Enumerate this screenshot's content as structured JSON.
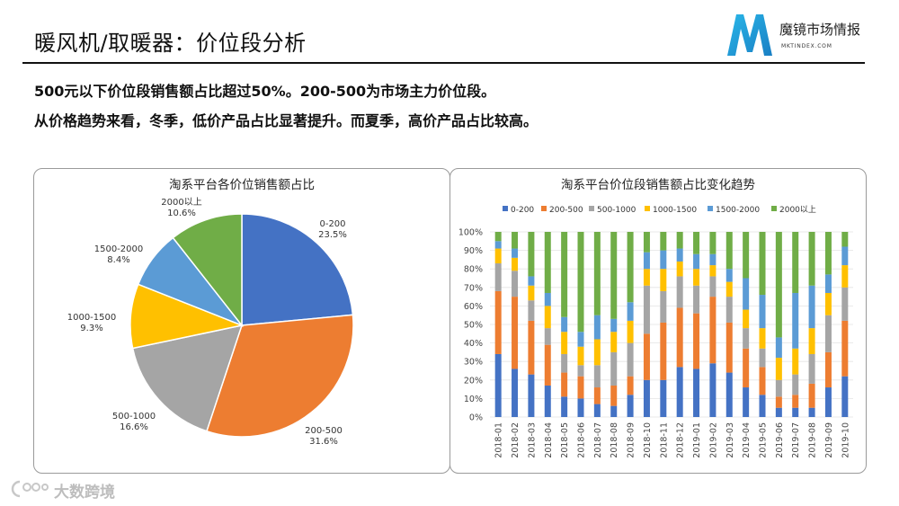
{
  "page": {
    "title": "暖风机/取暖器：价位段分析",
    "summary_line1": "500元以下价位段销售额占比超过50%。200-500为市场主力价位段。",
    "summary_line2": "从价格趋势来看，冬季，低价产品占比显著提升。而夏季，高价产品占比较高。"
  },
  "brand": {
    "name": "魔镜市场情报",
    "url": "MKTINDEX.COM"
  },
  "watermark": {
    "text": "大数跨境"
  },
  "colors": {
    "0-200": "#4472c4",
    "200-500": "#ed7d31",
    "500-1000": "#a5a5a5",
    "1000-1500": "#ffc000",
    "1500-2000": "#5b9bd5",
    "2000以上": "#70ad47"
  },
  "chart_data": [
    {
      "type": "pie",
      "title": "淘系平台各价位销售额占比",
      "slices": [
        {
          "label": "0-200",
          "value": 23.5,
          "display": "23.5%"
        },
        {
          "label": "200-500",
          "value": 31.6,
          "display": "31.6%"
        },
        {
          "label": "500-1000",
          "value": 16.6,
          "display": "16.6%"
        },
        {
          "label": "1000-1500",
          "value": 9.3,
          "display": "9.3%"
        },
        {
          "label": "1500-2000",
          "value": 8.4,
          "display": "8.4%"
        },
        {
          "label": "2000以上",
          "value": 10.6,
          "display": "10.6%"
        }
      ]
    },
    {
      "type": "bar",
      "stacked": true,
      "title": "淘系平台价位段销售额占比变化趋势",
      "legend_position": "top",
      "ylim": [
        0,
        100
      ],
      "yticks": [
        "0%",
        "10%",
        "20%",
        "30%",
        "40%",
        "50%",
        "60%",
        "70%",
        "80%",
        "90%",
        "100%"
      ],
      "categories": [
        "2018-01",
        "2018-02",
        "2018-03",
        "2018-04",
        "2018-05",
        "2018-06",
        "2018-07",
        "2018-08",
        "2018-09",
        "2018-10",
        "2018-11",
        "2018-12",
        "2019-01",
        "2019-02",
        "2019-03",
        "2019-04",
        "2019-05",
        "2019-06",
        "2019-07",
        "2019-08",
        "2019-09",
        "2019-10"
      ],
      "series": [
        {
          "name": "0-200",
          "values": [
            34,
            26,
            23,
            17,
            11,
            10,
            7,
            6,
            12,
            20,
            20,
            27,
            26,
            29,
            24,
            16,
            12,
            5,
            5,
            5,
            16,
            22
          ]
        },
        {
          "name": "200-500",
          "values": [
            34,
            39,
            29,
            22,
            13,
            12,
            9,
            11,
            10,
            25,
            31,
            32,
            30,
            36,
            27,
            21,
            15,
            6,
            7,
            13,
            19,
            30
          ]
        },
        {
          "name": "500-1000",
          "values": [
            15,
            14,
            11,
            9,
            10,
            6,
            12,
            18,
            18,
            26,
            17,
            17,
            15,
            11,
            14,
            11,
            10,
            9,
            11,
            16,
            20,
            18
          ]
        },
        {
          "name": "1000-1500",
          "values": [
            8,
            7,
            8,
            12,
            12,
            10,
            14,
            11,
            12,
            9,
            12,
            8,
            9,
            6,
            8,
            10,
            11,
            12,
            14,
            14,
            12,
            12
          ]
        },
        {
          "name": "1500-2000",
          "values": [
            4,
            5,
            5,
            7,
            8,
            8,
            13,
            7,
            10,
            9,
            10,
            7,
            8,
            6,
            7,
            17,
            18,
            11,
            30,
            23,
            10,
            10
          ]
        },
        {
          "name": "2000以上",
          "values": [
            5,
            9,
            24,
            33,
            46,
            54,
            45,
            47,
            38,
            11,
            10,
            9,
            12,
            12,
            20,
            25,
            34,
            57,
            33,
            29,
            23,
            8
          ]
        }
      ]
    }
  ]
}
